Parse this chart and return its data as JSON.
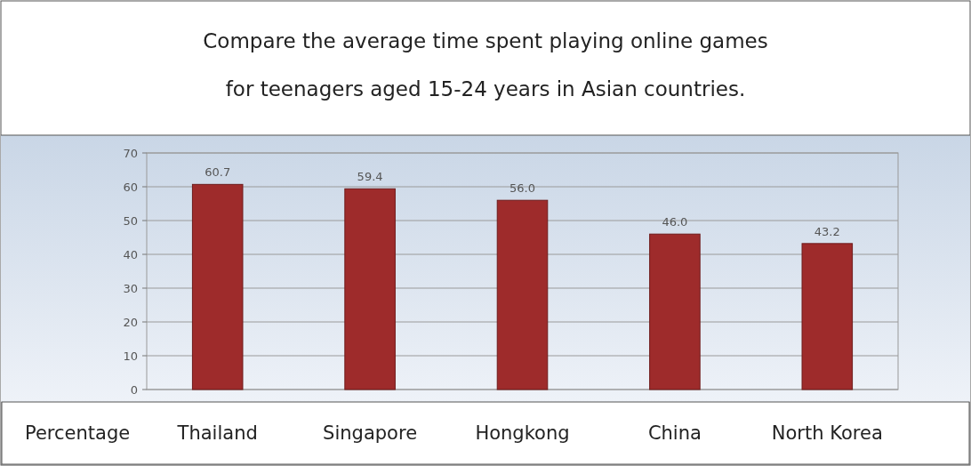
{
  "chart_data": {
    "type": "bar",
    "title": "Compare the average time spent playing online games",
    "subtitle": "for teenagers aged 15-24 years in Asian countries.",
    "ylabel": "Percentage",
    "categories": [
      "Thailand",
      "Singapore",
      "Hongkong",
      "China",
      "North Korea"
    ],
    "values": [
      60.7,
      59.4,
      56.0,
      46.0,
      43.2
    ],
    "value_labels": [
      "60.7",
      "59.4",
      "56.0",
      "46.0",
      "43.2"
    ],
    "color": "#9e2b2b",
    "ylim": [
      0,
      70
    ],
    "yticks": [
      0,
      10,
      20,
      30,
      40,
      50,
      60,
      70
    ],
    "grid": "y"
  }
}
